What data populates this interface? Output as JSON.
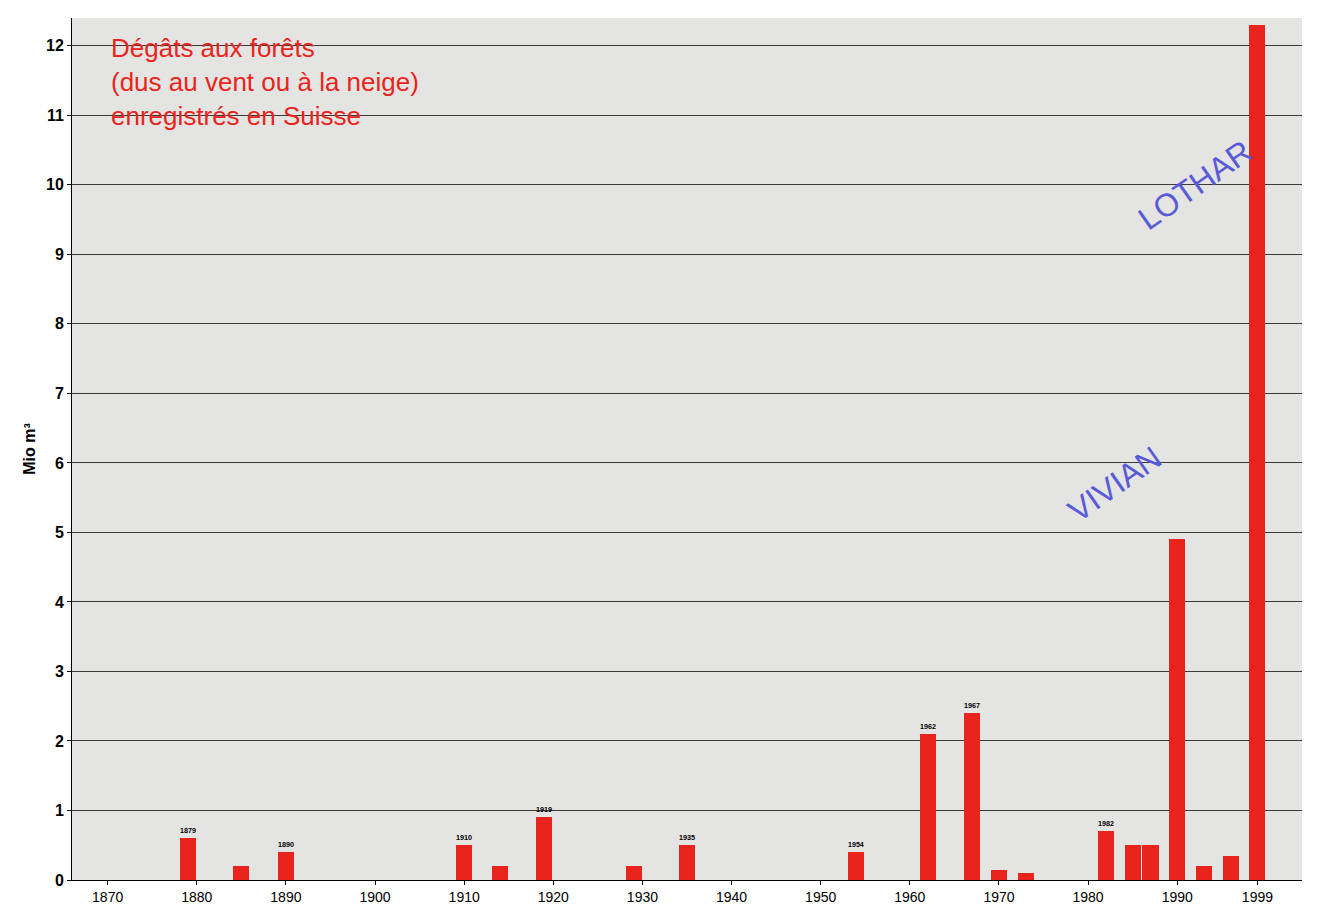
{
  "chart_data": {
    "type": "bar",
    "title": "Dégâts aux forêts\n(dus au vent ou à la neige)\nenregistrés en Suisse",
    "y_label": "Mio m³",
    "x": [
      1879,
      1885,
      1890,
      1910,
      1914,
      1919,
      1929,
      1935,
      1954,
      1962,
      1967,
      1970,
      1973,
      1982,
      1985,
      1987,
      1990,
      1993,
      1996,
      1999
    ],
    "values": [
      0.6,
      0.2,
      0.4,
      0.5,
      0.2,
      0.9,
      0.2,
      0.5,
      0.4,
      2.1,
      2.4,
      0.15,
      0.1,
      0.7,
      0.5,
      0.5,
      4.9,
      0.2,
      0.35,
      12.3
    ],
    "bar_labels": [
      "1879",
      null,
      "1890",
      "1910",
      null,
      "1919",
      null,
      "1935",
      "1954",
      "1962",
      "1967",
      null,
      null,
      "1982",
      null,
      null,
      null,
      null,
      null,
      null
    ],
    "color": "#e8241c",
    "xlim": [
      1866,
      2004
    ],
    "ylim": [
      0,
      12.4
    ],
    "xticks": [
      1870,
      1880,
      1890,
      1900,
      1910,
      1920,
      1930,
      1940,
      1950,
      1960,
      1970,
      1980,
      1990,
      1999
    ],
    "yticks": [
      0,
      1,
      2,
      3,
      4,
      5,
      6,
      7,
      8,
      9,
      10,
      11,
      12
    ],
    "grid": true,
    "annotations": [
      {
        "text": "VIVIAN",
        "x": 1983,
        "y": 5.7
      },
      {
        "text": "LOTHAR",
        "x": 1992,
        "y": 10
      }
    ]
  }
}
